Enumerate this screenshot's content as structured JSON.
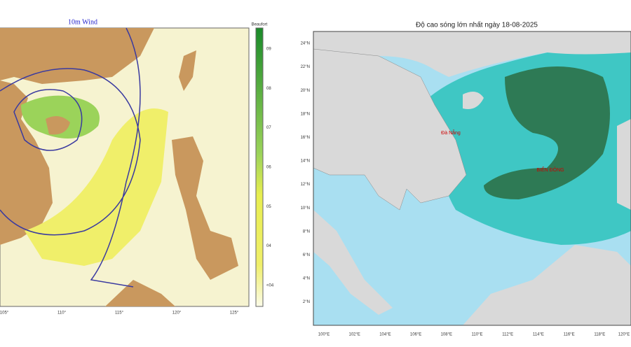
{
  "left_map": {
    "title": "10m Wind",
    "colorbar_title": "Beaufort",
    "colorbar_labels": [
      "09",
      "08",
      "07",
      "06",
      "05",
      "04",
      "<04"
    ],
    "lon_labels": [
      "105°",
      "110°",
      "115°",
      "120°",
      "125°"
    ]
  },
  "right_map": {
    "title": "Độ cao sóng lớn nhất ngày 18-08-2025",
    "lat_labels": [
      "24°N",
      "22°N",
      "20°N",
      "18°N",
      "16°N",
      "14°N",
      "12°N",
      "10°N",
      "8°N",
      "6°N",
      "4°N",
      "2°N"
    ],
    "lon_labels": [
      "100°E",
      "102°E",
      "104°E",
      "106°E",
      "108°E",
      "110°E",
      "112°E",
      "114°E",
      "116°E",
      "118°E",
      "120°E"
    ],
    "places": [
      "Đà Nẵng",
      "BIỂN ĐÔNG"
    ]
  }
}
